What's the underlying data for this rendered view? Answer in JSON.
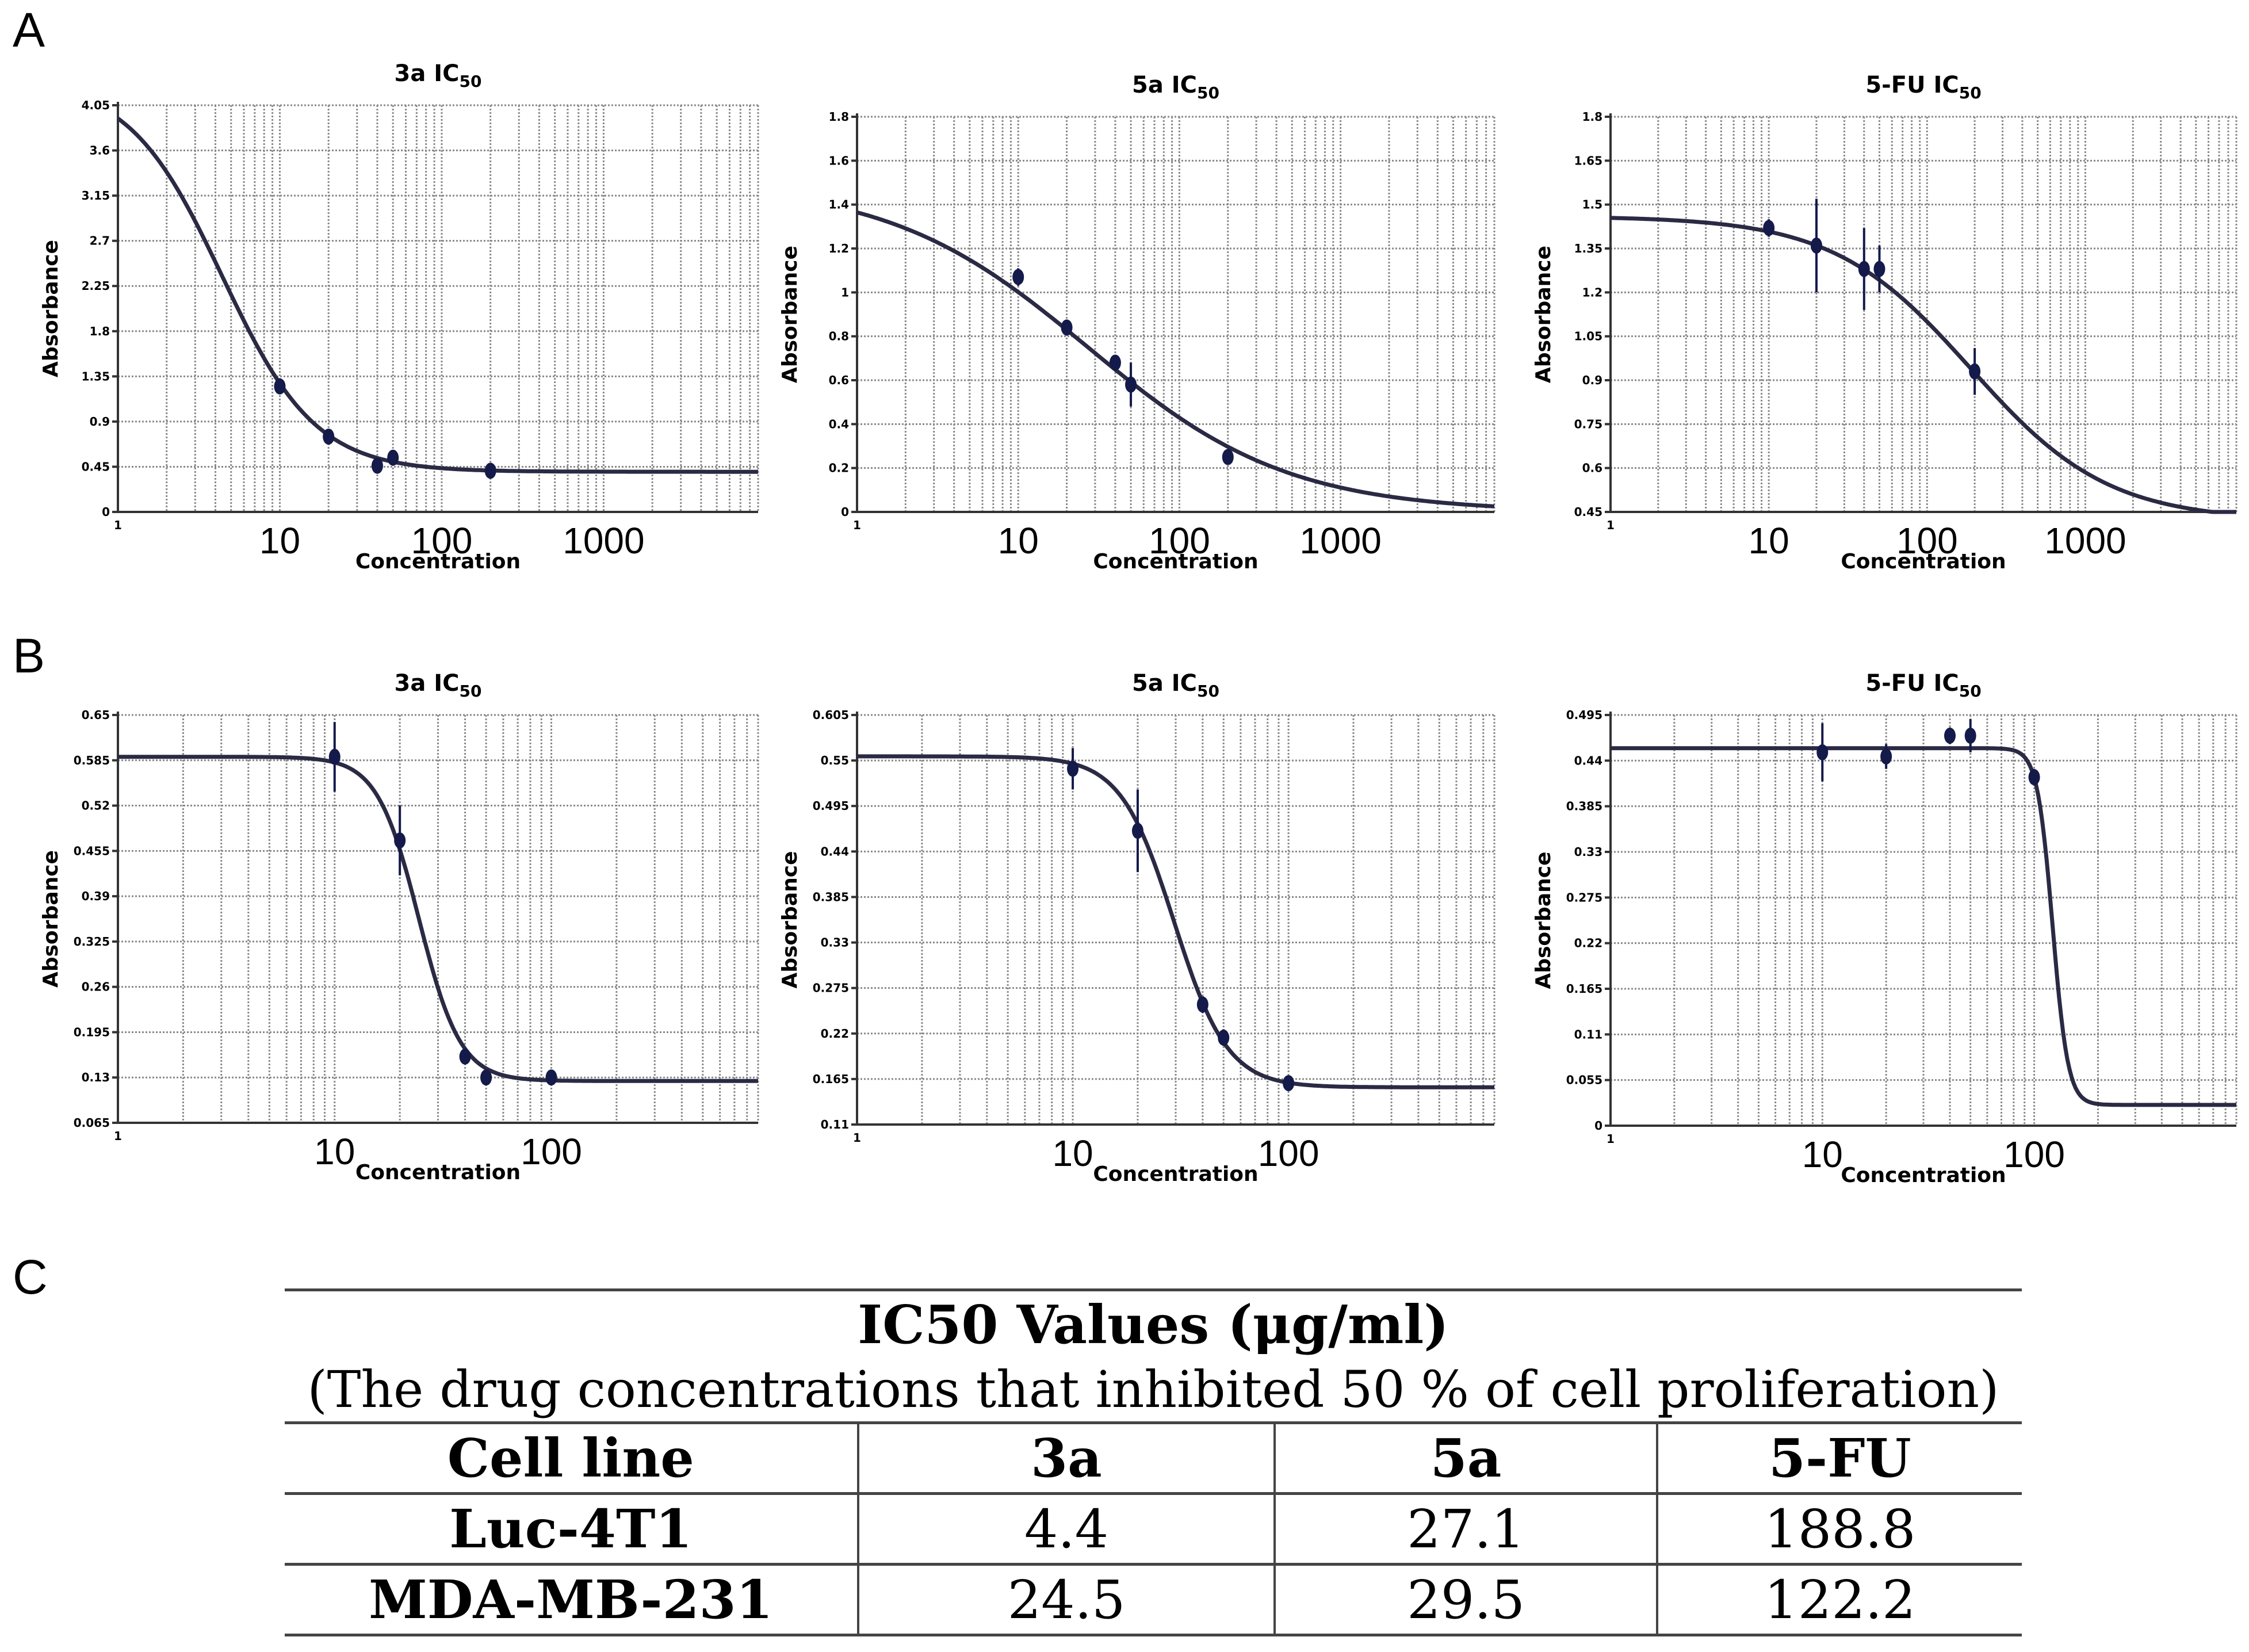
{
  "panel_labels": [
    "A",
    "B",
    "C"
  ],
  "chart_data": [
    {
      "type": "line",
      "panel": "A",
      "title": "3a  IC",
      "title_subscript": "50",
      "xlabel": "Concentration",
      "ylabel": "Absorbance",
      "xscale": "log",
      "xlim": [
        1,
        9000
      ],
      "ylim": [
        0,
        4.05
      ],
      "yticks": [
        "0",
        "0.45",
        "0.9",
        "1.35",
        "1.8",
        "2.25",
        "2.7",
        "3.15",
        "3.6",
        "4.05"
      ],
      "xticks": [
        {
          "value": 10,
          "label": "10"
        },
        {
          "value": 100,
          "label": "100"
        },
        {
          "value": 1000,
          "label": "1000"
        }
      ],
      "curve": {
        "bottom": 0.4,
        "top": 4.3,
        "ic50": 4.4,
        "hill": 1.5
      },
      "points": [
        {
          "x": 10,
          "y": 1.25,
          "err": 0
        },
        {
          "x": 20,
          "y": 0.75,
          "err": 0
        },
        {
          "x": 40,
          "y": 0.46,
          "err": 0
        },
        {
          "x": 50,
          "y": 0.54,
          "err": 0
        },
        {
          "x": 200,
          "y": 0.41,
          "err": 0
        }
      ]
    },
    {
      "type": "line",
      "panel": "A",
      "title": "5a IC",
      "title_subscript": "50",
      "xlabel": "Concentration",
      "ylabel": "Absorbance",
      "xscale": "log",
      "xlim": [
        1,
        9000
      ],
      "ylim": [
        0,
        1.8
      ],
      "yticks": [
        "0",
        "0.2",
        "0.4",
        "0.6",
        "0.8",
        "1",
        "1.2",
        "1.4",
        "1.6",
        "1.8"
      ],
      "xticks": [
        {
          "value": 10,
          "label": "10"
        },
        {
          "value": 100,
          "label": "100"
        },
        {
          "value": 1000,
          "label": "1000"
        }
      ],
      "curve": {
        "bottom": 0,
        "top": 1.5,
        "ic50": 27.1,
        "hill": 0.7
      },
      "points": [
        {
          "x": 10,
          "y": 1.07,
          "err": 0.04
        },
        {
          "x": 20,
          "y": 0.84,
          "err": 0.03
        },
        {
          "x": 40,
          "y": 0.68,
          "err": 0.03
        },
        {
          "x": 50,
          "y": 0.58,
          "err": 0.1
        },
        {
          "x": 200,
          "y": 0.25,
          "err": 0
        }
      ]
    },
    {
      "type": "line",
      "panel": "A",
      "title": "5-FU IC",
      "title_subscript": "50",
      "xlabel": "Concentration",
      "ylabel": "Absorbance",
      "xscale": "log",
      "xlim": [
        1,
        9000
      ],
      "ylim": [
        0.45,
        1.8
      ],
      "yticks": [
        "0.45",
        "0.6",
        "0.75",
        "0.9",
        "1.05",
        "1.2",
        "1.35",
        "1.5",
        "1.65",
        "1.8"
      ],
      "xticks": [
        {
          "value": 10,
          "label": "10"
        },
        {
          "value": 100,
          "label": "100"
        },
        {
          "value": 1000,
          "label": "1000"
        }
      ],
      "curve": {
        "bottom": 0.42,
        "top": 1.46,
        "ic50": 188.8,
        "hill": 1.0
      },
      "points": [
        {
          "x": 10,
          "y": 1.42,
          "err": 0.03
        },
        {
          "x": 20,
          "y": 1.36,
          "err": 0.16
        },
        {
          "x": 40,
          "y": 1.28,
          "err": 0.14
        },
        {
          "x": 50,
          "y": 1.28,
          "err": 0.08
        },
        {
          "x": 200,
          "y": 0.93,
          "err": 0.08
        }
      ]
    },
    {
      "type": "line",
      "panel": "B",
      "title": "3a IC",
      "title_subscript": "50",
      "xlabel": "Concentration",
      "ylabel": "Absorbance",
      "xscale": "log",
      "xlim": [
        1,
        900
      ],
      "ylim": [
        0.065,
        0.65
      ],
      "yticks": [
        "0.065",
        "0.13",
        "0.195",
        "0.26",
        "0.325",
        "0.39",
        "0.455",
        "0.52",
        "0.585",
        "0.65"
      ],
      "xticks": [
        {
          "value": 10,
          "label": "10"
        },
        {
          "value": 100,
          "label": "100"
        }
      ],
      "curve": {
        "bottom": 0.125,
        "top": 0.59,
        "ic50": 24.5,
        "hill": 4.5
      },
      "points": [
        {
          "x": 10,
          "y": 0.59,
          "err": 0.05
        },
        {
          "x": 20,
          "y": 0.47,
          "err": 0.05
        },
        {
          "x": 40,
          "y": 0.16,
          "err": 0.01
        },
        {
          "x": 50,
          "y": 0.13,
          "err": 0.01
        },
        {
          "x": 100,
          "y": 0.13,
          "err": 0.01
        }
      ]
    },
    {
      "type": "line",
      "panel": "B",
      "title": "5a IC",
      "title_subscript": "50",
      "xlabel": "Concentration",
      "ylabel": "Absorbance",
      "xscale": "log",
      "xlim": [
        1,
        900
      ],
      "ylim": [
        0.11,
        0.605
      ],
      "yticks": [
        "0.11",
        "0.165",
        "0.22",
        "0.275",
        "0.33",
        "0.385",
        "0.44",
        "0.495",
        "0.55",
        "0.605"
      ],
      "xticks": [
        {
          "value": 10,
          "label": "10"
        },
        {
          "value": 100,
          "label": "100"
        }
      ],
      "curve": {
        "bottom": 0.155,
        "top": 0.555,
        "ic50": 29.5,
        "hill": 3.5
      },
      "points": [
        {
          "x": 10,
          "y": 0.54,
          "err": 0.025
        },
        {
          "x": 20,
          "y": 0.465,
          "err": 0.05
        },
        {
          "x": 40,
          "y": 0.255,
          "err": 0.01
        },
        {
          "x": 50,
          "y": 0.215,
          "err": 0.01
        },
        {
          "x": 100,
          "y": 0.16,
          "err": 0.005
        }
      ]
    },
    {
      "type": "line",
      "panel": "B",
      "title": "5-FU IC",
      "title_subscript": "50",
      "xlabel": "Concentration",
      "ylabel": "Absorbance",
      "xscale": "log",
      "xlim": [
        1,
        900
      ],
      "ylim": [
        0,
        0.495
      ],
      "yticks": [
        "0",
        "0.055",
        "0.11",
        "0.165",
        "0.22",
        "0.275",
        "0.33",
        "0.385",
        "0.44",
        "0.495"
      ],
      "xticks": [
        {
          "value": 10,
          "label": "10"
        },
        {
          "value": 100,
          "label": "100"
        }
      ],
      "curve": {
        "bottom": 0.025,
        "top": 0.455,
        "ic50": 122.2,
        "hill": 12
      },
      "points": [
        {
          "x": 10,
          "y": 0.45,
          "err": 0.035
        },
        {
          "x": 20,
          "y": 0.445,
          "err": 0.015
        },
        {
          "x": 40,
          "y": 0.47,
          "err": 0.01
        },
        {
          "x": 50,
          "y": 0.47,
          "err": 0.02
        },
        {
          "x": 100,
          "y": 0.42,
          "err": 0.01
        }
      ]
    }
  ],
  "table": {
    "title": "IC50 Values (μg/ml)",
    "subtitle": "(The drug concentrations that inhibited 50 % of cell proliferation)",
    "headers": [
      "Cell line",
      "3a",
      "5a",
      "5-FU"
    ],
    "rows": [
      [
        "Luc-4T1",
        "4.4",
        "27.1",
        "188.8"
      ],
      [
        "MDA-MB-231",
        "24.5",
        "29.5",
        "122.2"
      ]
    ]
  }
}
